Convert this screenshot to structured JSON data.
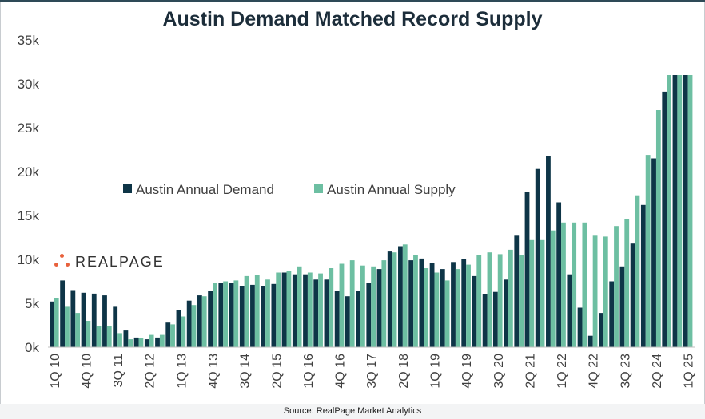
{
  "chart_data": {
    "type": "bar",
    "title": "Austin Demand Matched Record Supply",
    "source": "Source: RealPage Market Analytics",
    "xlabel": "",
    "ylabel": "",
    "ylim": [
      0,
      35000
    ],
    "yticks": [
      {
        "value": 0,
        "label": "0k"
      },
      {
        "value": 5000,
        "label": "5k"
      },
      {
        "value": 10000,
        "label": "10k"
      },
      {
        "value": 15000,
        "label": "15k"
      },
      {
        "value": 20000,
        "label": "20k"
      },
      {
        "value": 25000,
        "label": "25k"
      },
      {
        "value": 30000,
        "label": "30k"
      },
      {
        "value": 35000,
        "label": "35k"
      }
    ],
    "legend_position": "middle-left",
    "categories": [
      "1Q 10",
      "2Q 10",
      "3Q 10",
      "4Q 10",
      "1Q 11",
      "2Q 11",
      "3Q 11",
      "4Q 11",
      "1Q 12",
      "2Q 12",
      "3Q 12",
      "4Q 12",
      "1Q 13",
      "2Q 13",
      "3Q 13",
      "4Q 13",
      "1Q 14",
      "2Q 14",
      "3Q 14",
      "4Q 14",
      "1Q 15",
      "2Q 15",
      "3Q 15",
      "4Q 15",
      "1Q 16",
      "2Q 16",
      "3Q 16",
      "4Q 16",
      "1Q 17",
      "2Q 17",
      "3Q 17",
      "4Q 17",
      "1Q 18",
      "2Q 18",
      "3Q 18",
      "4Q 18",
      "1Q 19",
      "2Q 19",
      "3Q 19",
      "4Q 19",
      "1Q 20",
      "2Q 20",
      "3Q 20",
      "4Q 20",
      "1Q 21",
      "2Q 21",
      "3Q 21",
      "4Q 21",
      "1Q 22",
      "2Q 22",
      "3Q 22",
      "4Q 22",
      "1Q 23",
      "2Q 23",
      "3Q 23",
      "4Q 23",
      "1Q 24",
      "2Q 24",
      "3Q 24",
      "4Q 24",
      "1Q 25"
    ],
    "tick_labels": [
      "1Q 10",
      "4Q 10",
      "3Q 11",
      "2Q 12",
      "1Q 13",
      "4Q 13",
      "3Q 14",
      "2Q 15",
      "1Q 16",
      "4Q 16",
      "3Q 17",
      "2Q 18",
      "1Q 19",
      "4Q 19",
      "3Q 20",
      "2Q 21",
      "1Q 22",
      "4Q 22",
      "3Q 23",
      "2Q 24",
      "1Q 25"
    ],
    "series": [
      {
        "name": "Austin Annual Demand",
        "color": "#0e3547",
        "values": [
          5200,
          7600,
          6500,
          6200,
          6100,
          5900,
          4600,
          1900,
          1100,
          900,
          1100,
          2800,
          4200,
          5300,
          5900,
          6400,
          7300,
          7300,
          7000,
          7100,
          7000,
          7200,
          8500,
          8300,
          8300,
          7700,
          7700,
          6400,
          5800,
          6400,
          7300,
          8900,
          10900,
          11500,
          9900,
          10100,
          9600,
          8900,
          9700,
          10000,
          8100,
          6000,
          6300,
          7700,
          12700,
          17700,
          20300,
          21800,
          16500,
          8300,
          4500,
          1300,
          3900,
          7500,
          9200,
          11800,
          16200,
          21500,
          29100,
          31000,
          31000
        ]
      },
      {
        "name": "Austin Annual Supply",
        "color": "#6dbfa2",
        "values": [
          5600,
          4600,
          3900,
          3000,
          2400,
          2400,
          1600,
          900,
          1000,
          1400,
          1400,
          2600,
          3500,
          4800,
          5800,
          7300,
          7500,
          7600,
          8100,
          8200,
          7700,
          8500,
          8700,
          9200,
          8500,
          8400,
          9000,
          9500,
          9900,
          9300,
          9200,
          9900,
          10800,
          11700,
          10500,
          9000,
          8500,
          7600,
          8900,
          9400,
          10500,
          10800,
          10600,
          11100,
          10500,
          12200,
          12200,
          13300,
          14200,
          14200,
          14200,
          12700,
          12600,
          13800,
          14600,
          17300,
          21900,
          27000,
          31000,
          31000,
          31000
        ]
      }
    ]
  },
  "logo": {
    "text": "REALPAGE"
  }
}
